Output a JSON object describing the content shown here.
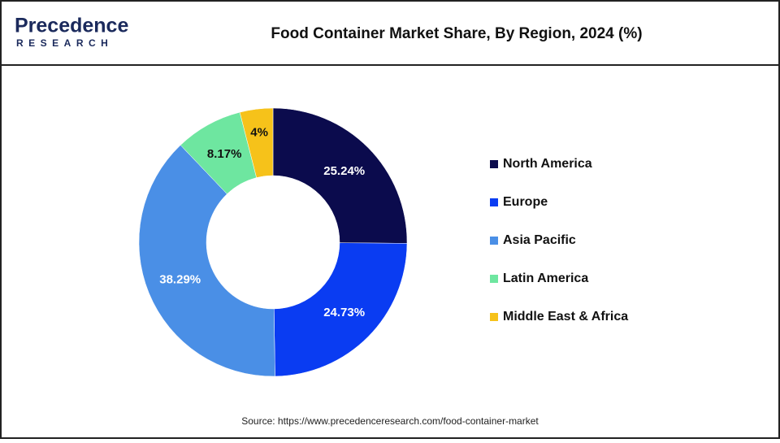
{
  "logo": {
    "name": "Precedence",
    "tagline": "RESEARCH"
  },
  "chart_data": {
    "type": "donut",
    "title": "Food Container Market Share, By Region, 2024 (%)",
    "categories": [
      "North America",
      "Europe",
      "Asia Pacific",
      "Latin America",
      "Middle East & Africa"
    ],
    "values": [
      25.24,
      24.73,
      38.29,
      8.17,
      4
    ],
    "value_labels": [
      "25.24%",
      "24.73%",
      "38.29%",
      "8.17%",
      "4%"
    ],
    "colors": [
      "#0b0b4d",
      "#0a3cf2",
      "#4a8fe6",
      "#6ee6a0",
      "#f6c21a"
    ],
    "legend": "right"
  },
  "source": "Source: https://www.precedenceresearch.com/food-container-market"
}
